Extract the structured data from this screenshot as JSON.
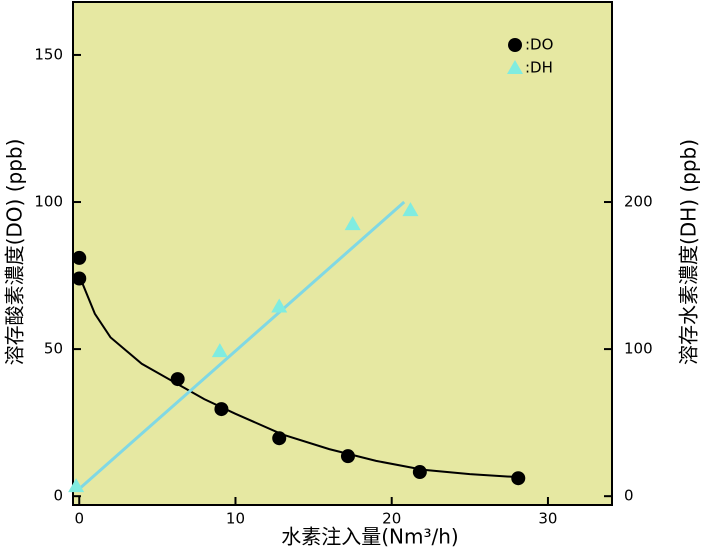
{
  "chart_data": {
    "type": "scatter",
    "x_label": "水素注入量(Nm³/h)",
    "y_label": "溶存酸素濃度(DO) (ppb)",
    "y2_label": "溶存水素濃度(DH) (ppb)",
    "background": "#e6e8a2",
    "xlim": [
      -0.4,
      34.1
    ],
    "xticks": [
      0,
      10,
      20,
      30
    ],
    "ylim": [
      -3,
      168
    ],
    "yticks": [
      0,
      50,
      100,
      150
    ],
    "y2lim": [
      -6,
      336
    ],
    "y2ticks": [
      0,
      100,
      200
    ],
    "series": [
      {
        "name": ":DO",
        "color": "#000000",
        "marker": "circle",
        "axis": "y",
        "x": [
          0,
          0,
          6.3,
          9.1,
          12.8,
          17.2,
          21.8,
          28.1
        ],
        "values": [
          81,
          74,
          39.8,
          29.6,
          19.7,
          13.6,
          8.2,
          6.1
        ]
      },
      {
        "name": ":DH",
        "color": "#80ece0",
        "marker": "triangle",
        "axis": "y2",
        "x": [
          -0.2,
          9.0,
          12.8,
          17.5,
          21.2
        ],
        "values": [
          6.8,
          98.6,
          129,
          185,
          194.5
        ]
      },
      {
        "type": "line",
        "color": "#000000",
        "axis": "y",
        "x": [
          0,
          1,
          2,
          4,
          6,
          8,
          10,
          13,
          16,
          19,
          22,
          25,
          28
        ],
        "values": [
          75,
          62,
          54,
          45,
          39,
          33,
          28,
          21,
          16,
          12,
          9,
          7.5,
          6.5
        ]
      },
      {
        "type": "line",
        "color": "#80d8e4",
        "axis": "y2",
        "x": [
          0,
          20.8
        ],
        "values": [
          5,
          200
        ]
      }
    ]
  }
}
